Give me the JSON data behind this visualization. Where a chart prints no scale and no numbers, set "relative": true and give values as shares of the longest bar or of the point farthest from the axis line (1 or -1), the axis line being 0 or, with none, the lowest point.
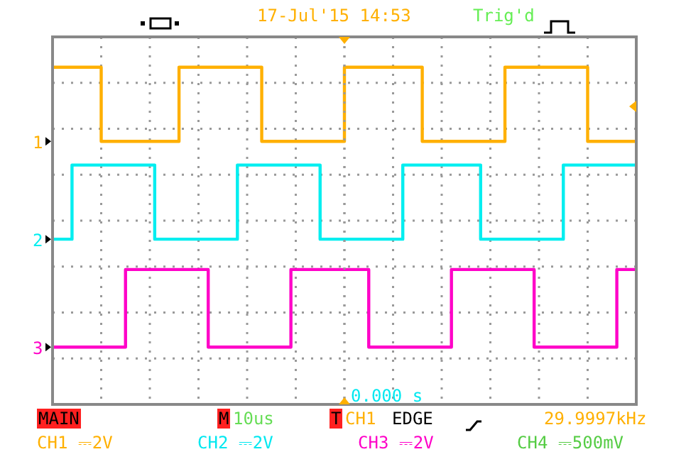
{
  "chart_data": {
    "type": "step",
    "relative": true,
    "grid": true,
    "marker": "none",
    "line_style": "solid",
    "categories": [
      null,
      null,
      null,
      null,
      null,
      null,
      null,
      null,
      null,
      null,
      null,
      null,
      null,
      null,
      null,
      null,
      null,
      null,
      null,
      null,
      null,
      null,
      null,
      null,
      null,
      null,
      null,
      null,
      null,
      null,
      null,
      null,
      null,
      null,
      null,
      null,
      null,
      null,
      null,
      null,
      null,
      null,
      null,
      null,
      null,
      null,
      null,
      null,
      null,
      null,
      null,
      null,
      null,
      null,
      null,
      null,
      null,
      null,
      null,
      null,
      null,
      null,
      null,
      null,
      null,
      null,
      null,
      null,
      null,
      null,
      null,
      null,
      null,
      null,
      null,
      null,
      null,
      null,
      null,
      null,
      null,
      null,
      null,
      null,
      null,
      null,
      null,
      null,
      null,
      null,
      null,
      null,
      null,
      null,
      null,
      null,
      null,
      null,
      null,
      null,
      null,
      null,
      null,
      null,
      null,
      null,
      null,
      null,
      null,
      null,
      null,
      null,
      null,
      null,
      null,
      null,
      null,
      null,
      null,
      null,
      null
    ],
    "series": [
      {
        "name": "1",
        "color": "#ffb000",
        "values": [
          1,
          1,
          1,
          1,
          1,
          1,
          1,
          1,
          1,
          1,
          0.78,
          0.78,
          0.78,
          0.78,
          0.78,
          0.78,
          0.78,
          0.78,
          0.78,
          0.78,
          0.78,
          0.78,
          0.78,
          0.78,
          0.78,
          0.78,
          1,
          1,
          1,
          1,
          1,
          1,
          1,
          1,
          1,
          1,
          1,
          1,
          1,
          1,
          1,
          1,
          1,
          0.78,
          0.78,
          0.78,
          0.78,
          0.78,
          0.78,
          0.78,
          0.78,
          0.78,
          0.78,
          0.78,
          0.78,
          0.78,
          0.78,
          0.78,
          0.78,
          0.78,
          1,
          1,
          1,
          1,
          1,
          1,
          1,
          1,
          1,
          1,
          1,
          1,
          1,
          1,
          1,
          1,
          0.78,
          0.78,
          0.78,
          0.78,
          0.78,
          0.78,
          0.78,
          0.78,
          0.78,
          0.78,
          0.78,
          0.78,
          0.78,
          0.78,
          0.78,
          0.78,
          0.78,
          1,
          1,
          1,
          1,
          1,
          1,
          1,
          1,
          1,
          1,
          1,
          1,
          1,
          1,
          1,
          1,
          1,
          0.78,
          0.78,
          0.78,
          0.78,
          0.78,
          0.78,
          0.78,
          0.78,
          0.78,
          0.78,
          0.78
        ]
      },
      {
        "name": "2",
        "color": "#00eef0",
        "values": [
          0.49,
          0.49,
          0.49,
          0.49,
          0.71,
          0.71,
          0.71,
          0.71,
          0.71,
          0.71,
          0.71,
          0.71,
          0.71,
          0.71,
          0.71,
          0.71,
          0.71,
          0.71,
          0.71,
          0.71,
          0.71,
          0.49,
          0.49,
          0.49,
          0.49,
          0.49,
          0.49,
          0.49,
          0.49,
          0.49,
          0.49,
          0.49,
          0.49,
          0.49,
          0.49,
          0.49,
          0.49,
          0.49,
          0.71,
          0.71,
          0.71,
          0.71,
          0.71,
          0.71,
          0.71,
          0.71,
          0.71,
          0.71,
          0.71,
          0.71,
          0.71,
          0.71,
          0.71,
          0.71,
          0.71,
          0.49,
          0.49,
          0.49,
          0.49,
          0.49,
          0.49,
          0.49,
          0.49,
          0.49,
          0.49,
          0.49,
          0.49,
          0.49,
          0.49,
          0.49,
          0.49,
          0.49,
          0.71,
          0.71,
          0.71,
          0.71,
          0.71,
          0.71,
          0.71,
          0.71,
          0.71,
          0.71,
          0.71,
          0.71,
          0.71,
          0.71,
          0.71,
          0.71,
          0.49,
          0.49,
          0.49,
          0.49,
          0.49,
          0.49,
          0.49,
          0.49,
          0.49,
          0.49,
          0.49,
          0.49,
          0.49,
          0.49,
          0.49,
          0.49,
          0.49,
          0.71,
          0.71,
          0.71,
          0.71,
          0.71,
          0.71,
          0.71,
          0.71,
          0.71,
          0.71,
          0.71,
          0.71,
          0.71,
          0.71,
          0.71,
          0.71
        ]
      },
      {
        "name": "3",
        "color": "#ff00c8",
        "values": [
          0.17,
          0.17,
          0.17,
          0.17,
          0.17,
          0.17,
          0.17,
          0.17,
          0.17,
          0.17,
          0.17,
          0.17,
          0.17,
          0.17,
          0.17,
          0.4,
          0.4,
          0.4,
          0.4,
          0.4,
          0.4,
          0.4,
          0.4,
          0.4,
          0.4,
          0.4,
          0.4,
          0.4,
          0.4,
          0.4,
          0.4,
          0.4,
          0.17,
          0.17,
          0.17,
          0.17,
          0.17,
          0.17,
          0.17,
          0.17,
          0.17,
          0.17,
          0.17,
          0.17,
          0.17,
          0.17,
          0.17,
          0.17,
          0.17,
          0.4,
          0.4,
          0.4,
          0.4,
          0.4,
          0.4,
          0.4,
          0.4,
          0.4,
          0.4,
          0.4,
          0.4,
          0.4,
          0.4,
          0.4,
          0.4,
          0.17,
          0.17,
          0.17,
          0.17,
          0.17,
          0.17,
          0.17,
          0.17,
          0.17,
          0.17,
          0.17,
          0.17,
          0.17,
          0.17,
          0.17,
          0.17,
          0.17,
          0.4,
          0.4,
          0.4,
          0.4,
          0.4,
          0.4,
          0.4,
          0.4,
          0.4,
          0.4,
          0.4,
          0.4,
          0.4,
          0.4,
          0.4,
          0.4,
          0.4,
          0.17,
          0.17,
          0.17,
          0.17,
          0.17,
          0.17,
          0.17,
          0.17,
          0.17,
          0.17,
          0.17,
          0.17,
          0.17,
          0.17,
          0.17,
          0.17,
          0.17,
          0.4,
          0.4,
          0.4,
          0.4,
          0.4
        ]
      }
    ],
    "annotations": [
      "17-Jul'15 14:53",
      "Trig'd",
      "0.000 s",
      "MAIN",
      "M",
      "10us",
      "T",
      "CH1",
      "EDGE",
      "29.9997kHz",
      "CH1 ⎓2V",
      "CH2 ⎓2V",
      "CH3 ⎓2V",
      "CH4 ⎓500mV"
    ]
  }
}
